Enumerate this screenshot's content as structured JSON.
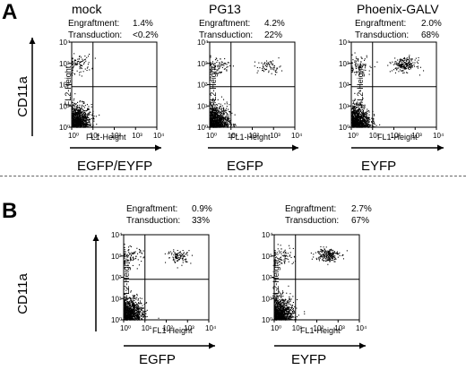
{
  "colors": {
    "dots": "#000000",
    "axes": "#000000",
    "quadrant_lines": "#000000"
  },
  "panel_a": {
    "letter": "A",
    "y_marker": "CD11a",
    "plots": [
      {
        "title": "mock",
        "engraftment_label": "Engraftment:",
        "engraftment_value": "1.4%",
        "transduction_label": "Transduction:",
        "transduction_value": "<0.2%",
        "x_marker": "EGFP/EYFP",
        "xlabel": "FL1-Height",
        "ylabel": "FL2-Height"
      },
      {
        "title": "PG13",
        "engraftment_label": "Engraftment:",
        "engraftment_value": "4.2%",
        "transduction_label": "Transduction:",
        "transduction_value": "22%",
        "x_marker": "EGFP",
        "xlabel": "FL1-Height",
        "ylabel": "FL2-Height"
      },
      {
        "title": "Phoenix-GALV",
        "engraftment_label": "Engraftment:",
        "engraftment_value": "2.0%",
        "transduction_label": "Transduction:",
        "transduction_value": "68%",
        "x_marker": "EYFP",
        "xlabel": "FL1-Height",
        "ylabel": "FL2-Height"
      }
    ]
  },
  "panel_b": {
    "letter": "B",
    "y_marker": "CD11a",
    "plots": [
      {
        "title": "",
        "engraftment_label": "Engraftment:",
        "engraftment_value": "0.9%",
        "transduction_label": "Transduction:",
        "transduction_value": "33%",
        "x_marker": "EGFP",
        "xlabel": "FL1-Height",
        "ylabel": "FL2-Height"
      },
      {
        "title": "",
        "engraftment_label": "Engraftment:",
        "engraftment_value": "2.7%",
        "transduction_label": "Transduction:",
        "transduction_value": "67%",
        "x_marker": "EYFP",
        "xlabel": "FL1-Height",
        "ylabel": "FL2-Height"
      }
    ]
  },
  "chart_data": [
    {
      "type": "scatter",
      "title": "mock",
      "xlabel": "FL1-Height",
      "ylabel": "FL2-Height",
      "xscale": "log",
      "yscale": "log",
      "xlim": [
        1,
        10000
      ],
      "ylim": [
        1,
        10000
      ],
      "x_ticks": [
        "10⁰",
        "10¹",
        "10²",
        "10³",
        "10⁴"
      ],
      "y_ticks": [
        "10⁰",
        "10¹",
        "10²",
        "10³",
        "10⁴"
      ],
      "quadrant_gate": {
        "x": 10,
        "y": 80
      },
      "annotations": {
        "Engraftment": "1.4%",
        "Transduction": "<0.2%"
      },
      "clusters": [
        {
          "quadrant": "lower-left",
          "center": [
            2,
            2
          ]
        },
        {
          "quadrant": "upper-left",
          "center": [
            2,
            1000
          ]
        }
      ]
    },
    {
      "type": "scatter",
      "title": "PG13",
      "xlabel": "FL1-Height",
      "ylabel": "FL2-Height",
      "xscale": "log",
      "yscale": "log",
      "xlim": [
        1,
        10000
      ],
      "ylim": [
        1,
        10000
      ],
      "x_ticks": [
        "10⁰",
        "10¹",
        "10²",
        "10³",
        "10⁴"
      ],
      "y_ticks": [
        "10⁰",
        "10¹",
        "10²",
        "10³",
        "10⁴"
      ],
      "quadrant_gate": {
        "x": 10,
        "y": 80
      },
      "annotations": {
        "Engraftment": "4.2%",
        "Transduction": "22%"
      },
      "clusters": [
        {
          "quadrant": "lower-left",
          "center": [
            2,
            2
          ]
        },
        {
          "quadrant": "upper-left",
          "center": [
            2,
            800
          ]
        },
        {
          "quadrant": "upper-right",
          "center": [
            600,
            700
          ]
        }
      ]
    },
    {
      "type": "scatter",
      "title": "Phoenix-GALV",
      "xlabel": "FL1-Height",
      "ylabel": "FL2-Height",
      "xscale": "log",
      "yscale": "log",
      "xlim": [
        1,
        10000
      ],
      "ylim": [
        1,
        10000
      ],
      "x_ticks": [
        "10⁰",
        "10¹",
        "10²",
        "10³",
        "10⁴"
      ],
      "y_ticks": [
        "10⁰",
        "10¹",
        "10²",
        "10³",
        "10⁴"
      ],
      "quadrant_gate": {
        "x": 10,
        "y": 80
      },
      "annotations": {
        "Engraftment": "2.0%",
        "Transduction": "68%"
      },
      "clusters": [
        {
          "quadrant": "lower-left",
          "center": [
            2,
            2
          ]
        },
        {
          "quadrant": "upper-left",
          "center": [
            2,
            900
          ]
        },
        {
          "quadrant": "upper-right",
          "center": [
            300,
            900
          ]
        }
      ]
    },
    {
      "type": "scatter",
      "title": "",
      "xlabel": "FL1-Height",
      "ylabel": "FL2-Height",
      "xscale": "log",
      "yscale": "log",
      "xlim": [
        1,
        10000
      ],
      "ylim": [
        1,
        10000
      ],
      "x_ticks": [
        "10⁰",
        "10¹",
        "10²",
        "10³",
        "10⁴"
      ],
      "y_ticks": [
        "10⁰",
        "10¹",
        "10²",
        "10³",
        "10⁴"
      ],
      "quadrant_gate": {
        "x": 10,
        "y": 80
      },
      "annotations": {
        "Engraftment": "0.9%",
        "Transduction": "33%"
      },
      "clusters": [
        {
          "quadrant": "lower-left",
          "center": [
            2,
            2
          ]
        },
        {
          "quadrant": "upper-left",
          "center": [
            2,
            1000
          ]
        },
        {
          "quadrant": "upper-right",
          "center": [
            400,
            1000
          ]
        }
      ]
    },
    {
      "type": "scatter",
      "title": "",
      "xlabel": "FL1-Height",
      "ylabel": "FL2-Height",
      "xscale": "log",
      "yscale": "log",
      "xlim": [
        1,
        10000
      ],
      "ylim": [
        1,
        10000
      ],
      "x_ticks": [
        "10⁰",
        "10¹",
        "10²",
        "10³",
        "10⁴"
      ],
      "y_ticks": [
        "10⁰",
        "10¹",
        "10²",
        "10³",
        "10⁴"
      ],
      "quadrant_gate": {
        "x": 10,
        "y": 80
      },
      "annotations": {
        "Engraftment": "2.7%",
        "Transduction": "67%"
      },
      "clusters": [
        {
          "quadrant": "lower-left",
          "center": [
            2,
            2
          ]
        },
        {
          "quadrant": "upper-left",
          "center": [
            2,
            1000
          ]
        },
        {
          "quadrant": "upper-right",
          "center": [
            300,
            1200
          ]
        }
      ]
    }
  ]
}
